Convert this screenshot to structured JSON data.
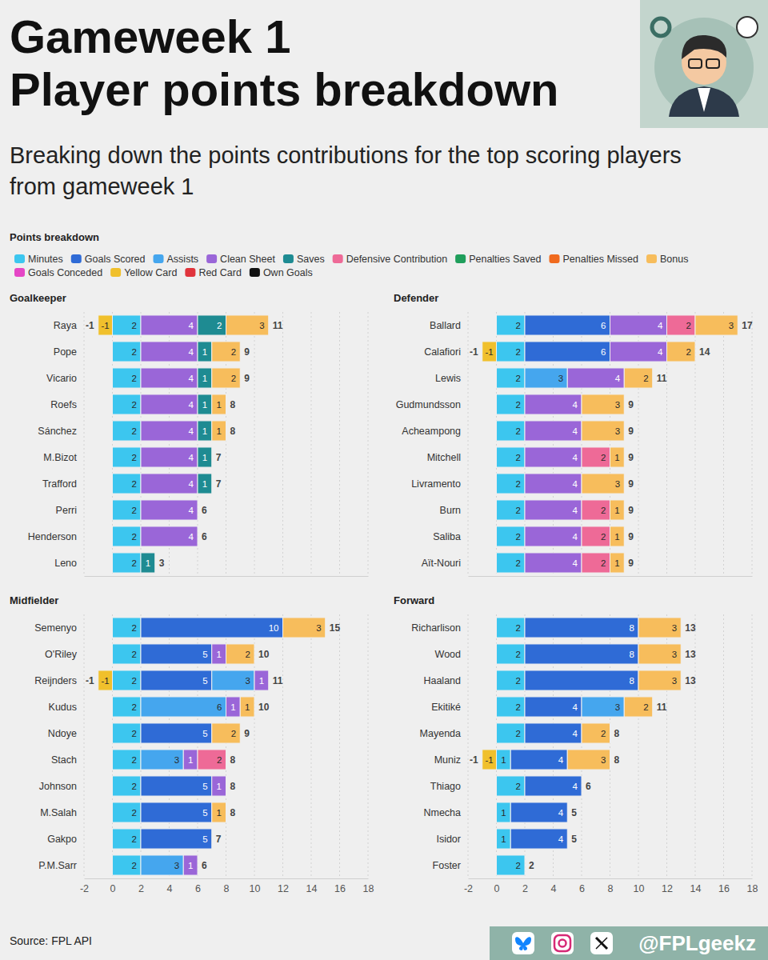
{
  "title": [
    "Gameweek 1",
    "Player points breakdown"
  ],
  "subtitle": "Breaking down the points contributions for the top scoring players from gameweek 1",
  "legend_title": "Points breakdown",
  "source": "Source: FPL API",
  "handle": "@FPLgeekz",
  "chart_data": [
    {
      "type": "bar",
      "orientation": "horizontal",
      "stacked": true,
      "data_labels": true,
      "grid": true,
      "legend": "top",
      "tick_labels": "y",
      "title": "Goalkeeper",
      "categories": [
        "Raya",
        "Pope",
        "Vicario",
        "Roefs",
        "Sánchez",
        "M.Bizot",
        "Trafford",
        "Perri",
        "Henderson",
        "Leno"
      ],
      "xlim": [
        -2,
        18
      ],
      "xticks": [
        -2,
        0,
        2,
        4,
        6,
        8,
        10,
        12,
        14,
        16,
        18
      ],
      "series": [
        {
          "name": "Minutes",
          "color": "#3cc6ef",
          "values": [
            2,
            2,
            2,
            2,
            2,
            2,
            2,
            2,
            2,
            2
          ]
        },
        {
          "name": "Goals Scored",
          "color": "#2f6bd6",
          "values": [
            null,
            null,
            null,
            null,
            null,
            null,
            null,
            null,
            null,
            null
          ]
        },
        {
          "name": "Assists",
          "color": "#45a6ee",
          "values": [
            null,
            null,
            null,
            null,
            null,
            null,
            null,
            null,
            null,
            null
          ]
        },
        {
          "name": "Clean Sheet",
          "color": "#9a66d8",
          "values": [
            4,
            4,
            4,
            4,
            4,
            4,
            4,
            4,
            4,
            null
          ]
        },
        {
          "name": "Saves",
          "color": "#1e8b92",
          "values": [
            2,
            1,
            1,
            1,
            1,
            1,
            1,
            null,
            null,
            1
          ]
        },
        {
          "name": "Defensive Contribution",
          "color": "#ee6a97",
          "values": [
            null,
            null,
            null,
            null,
            null,
            null,
            null,
            null,
            null,
            null
          ]
        },
        {
          "name": "Penalties Saved",
          "color": "#1f9e5b",
          "values": [
            null,
            null,
            null,
            null,
            null,
            null,
            null,
            null,
            null,
            null
          ]
        },
        {
          "name": "Penalties Missed",
          "color": "#f06a1e",
          "values": [
            null,
            null,
            null,
            null,
            null,
            null,
            null,
            null,
            null,
            null
          ]
        },
        {
          "name": "Bonus",
          "color": "#f7bd5c",
          "values": [
            3,
            2,
            2,
            1,
            1,
            null,
            null,
            null,
            null,
            null
          ]
        },
        {
          "name": "Goals Conceded",
          "color": "#e546c6",
          "values": [
            null,
            null,
            null,
            null,
            null,
            null,
            null,
            null,
            null,
            null
          ]
        },
        {
          "name": "Yellow Card",
          "color": "#f0c02c",
          "values": [
            -1,
            null,
            null,
            null,
            null,
            null,
            null,
            null,
            null,
            null
          ]
        },
        {
          "name": "Red Card",
          "color": "#e0343c",
          "values": [
            null,
            null,
            null,
            null,
            null,
            null,
            null,
            null,
            null,
            null
          ]
        },
        {
          "name": "Own Goals",
          "color": "#111111",
          "values": [
            null,
            null,
            null,
            null,
            null,
            null,
            null,
            null,
            null,
            null
          ]
        }
      ],
      "totals": [
        11,
        9,
        9,
        8,
        8,
        7,
        7,
        6,
        6,
        3
      ],
      "negative_totals": [
        -1,
        null,
        null,
        null,
        null,
        null,
        null,
        null,
        null,
        null
      ]
    },
    {
      "type": "bar",
      "orientation": "horizontal",
      "stacked": true,
      "data_labels": true,
      "grid": true,
      "tick_labels": "y",
      "title": "Defender",
      "categories": [
        "Ballard",
        "Calafiori",
        "Lewis",
        "Gudmundsson",
        "Acheampong",
        "Mitchell",
        "Livramento",
        "Burn",
        "Saliba",
        "Aït-Nouri"
      ],
      "xlim": [
        -2,
        18
      ],
      "xticks": [
        -2,
        0,
        2,
        4,
        6,
        8,
        10,
        12,
        14,
        16,
        18
      ],
      "series": [
        {
          "name": "Minutes",
          "color": "#3cc6ef",
          "values": [
            2,
            2,
            2,
            2,
            2,
            2,
            2,
            2,
            2,
            2
          ]
        },
        {
          "name": "Goals Scored",
          "color": "#2f6bd6",
          "values": [
            6,
            6,
            null,
            null,
            null,
            null,
            null,
            null,
            null,
            null
          ]
        },
        {
          "name": "Assists",
          "color": "#45a6ee",
          "values": [
            null,
            null,
            3,
            null,
            null,
            null,
            null,
            null,
            null,
            null
          ]
        },
        {
          "name": "Clean Sheet",
          "color": "#9a66d8",
          "values": [
            4,
            4,
            4,
            4,
            4,
            4,
            4,
            4,
            4,
            4
          ]
        },
        {
          "name": "Saves",
          "color": "#1e8b92",
          "values": [
            null,
            null,
            null,
            null,
            null,
            null,
            null,
            null,
            null,
            null
          ]
        },
        {
          "name": "Defensive Contribution",
          "color": "#ee6a97",
          "values": [
            2,
            null,
            null,
            null,
            null,
            2,
            null,
            2,
            2,
            2
          ]
        },
        {
          "name": "Penalties Saved",
          "color": "#1f9e5b",
          "values": [
            null,
            null,
            null,
            null,
            null,
            null,
            null,
            null,
            null,
            null
          ]
        },
        {
          "name": "Penalties Missed",
          "color": "#f06a1e",
          "values": [
            null,
            null,
            null,
            null,
            null,
            null,
            null,
            null,
            null,
            null
          ]
        },
        {
          "name": "Bonus",
          "color": "#f7bd5c",
          "values": [
            3,
            2,
            2,
            3,
            3,
            1,
            3,
            1,
            1,
            1
          ]
        },
        {
          "name": "Goals Conceded",
          "color": "#e546c6",
          "values": [
            null,
            null,
            null,
            null,
            null,
            null,
            null,
            null,
            null,
            null
          ]
        },
        {
          "name": "Yellow Card",
          "color": "#f0c02c",
          "values": [
            null,
            -1,
            null,
            null,
            null,
            null,
            null,
            null,
            null,
            null
          ]
        },
        {
          "name": "Red Card",
          "color": "#e0343c",
          "values": [
            null,
            null,
            null,
            null,
            null,
            null,
            null,
            null,
            null,
            null
          ]
        },
        {
          "name": "Own Goals",
          "color": "#111111",
          "values": [
            null,
            null,
            null,
            null,
            null,
            null,
            null,
            null,
            null,
            null
          ]
        }
      ],
      "totals": [
        17,
        14,
        11,
        9,
        9,
        9,
        9,
        9,
        9,
        9
      ],
      "negative_totals": [
        null,
        -1,
        null,
        null,
        null,
        null,
        null,
        null,
        null,
        null
      ]
    },
    {
      "type": "bar",
      "orientation": "horizontal",
      "stacked": true,
      "data_labels": true,
      "grid": true,
      "title": "Midfielder",
      "categories": [
        "Semenyo",
        "O'Riley",
        "Reijnders",
        "Kudus",
        "Ndoye",
        "Stach",
        "Johnson",
        "M.Salah",
        "Gakpo",
        "P.M.Sarr"
      ],
      "xlim": [
        -2,
        18
      ],
      "xticks": [
        -2,
        0,
        2,
        4,
        6,
        8,
        10,
        12,
        14,
        16,
        18
      ],
      "series": [
        {
          "name": "Minutes",
          "color": "#3cc6ef",
          "values": [
            2,
            2,
            2,
            2,
            2,
            2,
            2,
            2,
            2,
            2
          ]
        },
        {
          "name": "Goals Scored",
          "color": "#2f6bd6",
          "values": [
            10,
            5,
            5,
            null,
            5,
            null,
            5,
            5,
            5,
            null
          ]
        },
        {
          "name": "Assists",
          "color": "#45a6ee",
          "values": [
            null,
            null,
            3,
            6,
            null,
            3,
            null,
            null,
            null,
            3
          ]
        },
        {
          "name": "Clean Sheet",
          "color": "#9a66d8",
          "values": [
            null,
            1,
            1,
            1,
            null,
            1,
            1,
            null,
            null,
            1
          ]
        },
        {
          "name": "Saves",
          "color": "#1e8b92",
          "values": [
            null,
            null,
            null,
            null,
            null,
            null,
            null,
            null,
            null,
            null
          ]
        },
        {
          "name": "Defensive Contribution",
          "color": "#ee6a97",
          "values": [
            null,
            null,
            null,
            null,
            null,
            2,
            null,
            null,
            null,
            null
          ]
        },
        {
          "name": "Penalties Saved",
          "color": "#1f9e5b",
          "values": [
            null,
            null,
            null,
            null,
            null,
            null,
            null,
            null,
            null,
            null
          ]
        },
        {
          "name": "Penalties Missed",
          "color": "#f06a1e",
          "values": [
            null,
            null,
            null,
            null,
            null,
            null,
            null,
            null,
            null,
            null
          ]
        },
        {
          "name": "Bonus",
          "color": "#f7bd5c",
          "values": [
            3,
            2,
            null,
            1,
            2,
            null,
            null,
            1,
            null,
            null
          ]
        },
        {
          "name": "Goals Conceded",
          "color": "#e546c6",
          "values": [
            null,
            null,
            null,
            null,
            null,
            null,
            null,
            null,
            null,
            null
          ]
        },
        {
          "name": "Yellow Card",
          "color": "#f0c02c",
          "values": [
            null,
            null,
            -1,
            null,
            null,
            null,
            null,
            null,
            null,
            null
          ]
        },
        {
          "name": "Red Card",
          "color": "#e0343c",
          "values": [
            null,
            null,
            null,
            null,
            null,
            null,
            null,
            null,
            null,
            null
          ]
        },
        {
          "name": "Own Goals",
          "color": "#111111",
          "values": [
            null,
            null,
            null,
            null,
            null,
            null,
            null,
            null,
            null,
            null
          ]
        }
      ],
      "totals": [
        15,
        10,
        11,
        10,
        9,
        8,
        8,
        8,
        7,
        6
      ],
      "negative_totals": [
        null,
        null,
        -1,
        null,
        null,
        null,
        null,
        null,
        null,
        null
      ]
    },
    {
      "type": "bar",
      "orientation": "horizontal",
      "stacked": true,
      "data_labels": true,
      "grid": true,
      "title": "Forward",
      "categories": [
        "Richarlison",
        "Wood",
        "Haaland",
        "Ekitiké",
        "Mayenda",
        "Muniz",
        "Thiago",
        "Nmecha",
        "Isidor",
        "Foster"
      ],
      "xlim": [
        -2,
        18
      ],
      "xticks": [
        -2,
        0,
        2,
        4,
        6,
        8,
        10,
        12,
        14,
        16,
        18
      ],
      "series": [
        {
          "name": "Minutes",
          "color": "#3cc6ef",
          "values": [
            2,
            2,
            2,
            2,
            2,
            1,
            2,
            1,
            1,
            2
          ]
        },
        {
          "name": "Goals Scored",
          "color": "#2f6bd6",
          "values": [
            8,
            8,
            8,
            4,
            4,
            4,
            4,
            4,
            4,
            null
          ]
        },
        {
          "name": "Assists",
          "color": "#45a6ee",
          "values": [
            null,
            null,
            null,
            3,
            null,
            null,
            null,
            null,
            null,
            null
          ]
        },
        {
          "name": "Clean Sheet",
          "color": "#9a66d8",
          "values": [
            null,
            null,
            null,
            null,
            null,
            null,
            null,
            null,
            null,
            null
          ]
        },
        {
          "name": "Saves",
          "color": "#1e8b92",
          "values": [
            null,
            null,
            null,
            null,
            null,
            null,
            null,
            null,
            null,
            null
          ]
        },
        {
          "name": "Defensive Contribution",
          "color": "#ee6a97",
          "values": [
            null,
            null,
            null,
            null,
            null,
            null,
            null,
            null,
            null,
            null
          ]
        },
        {
          "name": "Penalties Saved",
          "color": "#1f9e5b",
          "values": [
            null,
            null,
            null,
            null,
            null,
            null,
            null,
            null,
            null,
            null
          ]
        },
        {
          "name": "Penalties Missed",
          "color": "#f06a1e",
          "values": [
            null,
            null,
            null,
            null,
            null,
            null,
            null,
            null,
            null,
            null
          ]
        },
        {
          "name": "Bonus",
          "color": "#f7bd5c",
          "values": [
            3,
            3,
            3,
            2,
            2,
            3,
            null,
            null,
            null,
            null
          ]
        },
        {
          "name": "Goals Conceded",
          "color": "#e546c6",
          "values": [
            null,
            null,
            null,
            null,
            null,
            null,
            null,
            null,
            null,
            null
          ]
        },
        {
          "name": "Yellow Card",
          "color": "#f0c02c",
          "values": [
            null,
            null,
            null,
            null,
            null,
            -1,
            null,
            null,
            null,
            null
          ]
        },
        {
          "name": "Red Card",
          "color": "#e0343c",
          "values": [
            null,
            null,
            null,
            null,
            null,
            null,
            null,
            null,
            null,
            null
          ]
        },
        {
          "name": "Own Goals",
          "color": "#111111",
          "values": [
            null,
            null,
            null,
            null,
            null,
            null,
            null,
            null,
            null,
            null
          ]
        }
      ],
      "totals": [
        13,
        13,
        13,
        11,
        8,
        8,
        6,
        5,
        5,
        2
      ],
      "negative_totals": [
        null,
        null,
        null,
        null,
        null,
        -1,
        null,
        null,
        null,
        null
      ]
    }
  ]
}
